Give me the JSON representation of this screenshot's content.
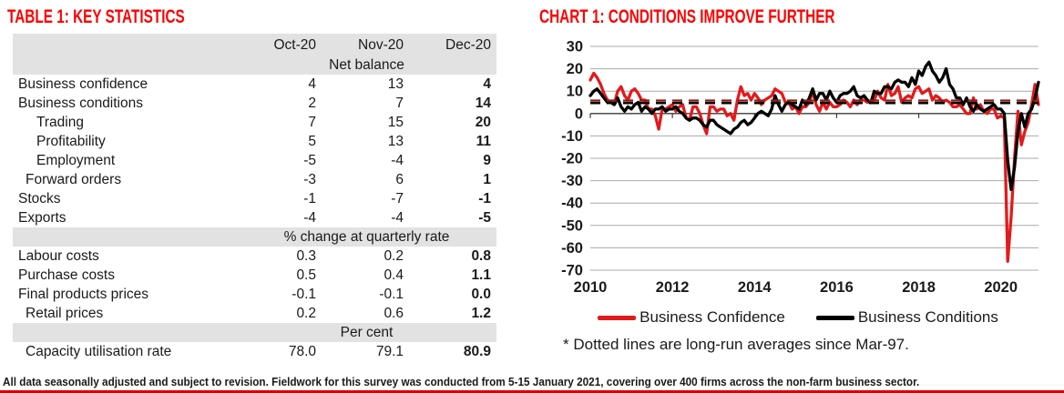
{
  "colors": {
    "accent": "#fe0000",
    "band_gray": "#e2e2e2",
    "grid": "#a8a8a8",
    "zero_axis": "#3a3a3a",
    "confidence_red": "#e31a1c",
    "conditions_black": "#000000",
    "dashed_confidence_avg": "#8a1d15",
    "dashed_conditions_avg": "#000000",
    "bottom_rule_red": "#d60000"
  },
  "table": {
    "title": "Table 1: Key Statistics",
    "columns": [
      "Oct-20",
      "Nov-20",
      "Dec-20"
    ],
    "sections": [
      {
        "unit": "Net balance",
        "rows": [
          {
            "label": "Business confidence",
            "indent": 0,
            "values": [
              "4",
              "13",
              "4"
            ]
          },
          {
            "label": "Business conditions",
            "indent": 0,
            "values": [
              "2",
              "7",
              "14"
            ]
          },
          {
            "label": "Trading",
            "indent": 2,
            "values": [
              "7",
              "15",
              "20"
            ]
          },
          {
            "label": "Profitability",
            "indent": 2,
            "values": [
              "5",
              "13",
              "11"
            ]
          },
          {
            "label": "Employment",
            "indent": 2,
            "values": [
              "-5",
              "-4",
              "9"
            ]
          },
          {
            "label": "Forward orders",
            "indent": 1,
            "values": [
              "-3",
              "6",
              "1"
            ]
          },
          {
            "label": "Stocks",
            "indent": 0,
            "values": [
              "-1",
              "-7",
              "-1"
            ]
          },
          {
            "label": "Exports",
            "indent": 0,
            "values": [
              "-4",
              "-4",
              "-5"
            ]
          }
        ]
      },
      {
        "unit": "% change at quarterly rate",
        "rows": [
          {
            "label": "Labour costs",
            "indent": 0,
            "values": [
              "0.3",
              "0.2",
              "0.8"
            ]
          },
          {
            "label": "Purchase costs",
            "indent": 0,
            "values": [
              "0.5",
              "0.4",
              "1.1"
            ]
          },
          {
            "label": "Final products prices",
            "indent": 0,
            "values": [
              "-0.1",
              "-0.1",
              "0.0"
            ]
          },
          {
            "label": "Retail prices",
            "indent": 1,
            "values": [
              "0.2",
              "0.6",
              "1.2"
            ]
          }
        ]
      },
      {
        "unit": "Per cent",
        "rows": [
          {
            "label": "Capacity utilisation rate",
            "indent": 1,
            "values": [
              "78.0",
              "79.1",
              "80.9"
            ]
          }
        ]
      }
    ]
  },
  "chart_data": {
    "type": "line",
    "title": "Chart 1: Conditions improve further",
    "x_unit": "monthly",
    "x_range": [
      "Jan-2010",
      "Dec-2020"
    ],
    "x_start_year": 2010,
    "x_tick_years": [
      2010,
      2012,
      2014,
      2016,
      2018,
      2020
    ],
    "ylim": [
      -70,
      30
    ],
    "y_ticks": [
      30,
      20,
      10,
      0,
      -10,
      -20,
      -30,
      -40,
      -50,
      -60,
      -70
    ],
    "grid": true,
    "legend_position": "bottom",
    "footnote": "* Dotted lines are long-run averages since Mar-97.",
    "series": [
      {
        "name": "Business Confidence",
        "color": "#e31a1c",
        "longrun_avg": 6,
        "monthly_values": [
          15,
          18,
          16,
          13,
          9,
          6,
          5,
          4,
          10,
          12,
          8,
          6,
          10,
          11,
          9,
          6,
          6,
          2,
          2,
          -1,
          -7,
          2,
          2,
          3,
          4,
          1,
          3,
          4,
          -2,
          -3,
          3,
          3,
          0,
          -5,
          -9,
          3,
          3,
          1,
          2,
          2,
          -1,
          0,
          -3,
          6,
          12,
          8,
          9,
          6,
          9,
          7,
          4,
          6,
          7,
          8,
          11,
          10,
          9,
          5,
          5,
          2,
          3,
          0,
          3,
          3,
          5,
          10,
          4,
          1,
          5,
          2,
          5,
          3,
          3,
          4,
          6,
          5,
          3,
          6,
          4,
          6,
          6,
          5,
          5,
          6,
          10,
          7,
          6,
          13,
          8,
          9,
          12,
          5,
          7,
          8,
          7,
          11,
          12,
          9,
          10,
          11,
          6,
          8,
          7,
          5,
          6,
          5,
          3,
          3,
          4,
          2,
          0,
          0,
          7,
          2,
          4,
          1,
          0,
          2,
          2,
          -2,
          -1,
          -2,
          -66,
          -46,
          -20,
          1,
          -14,
          -8,
          -4,
          4,
          13,
          4
        ]
      },
      {
        "name": "Business Conditions",
        "color": "#000000",
        "longrun_avg": 5,
        "monthly_values": [
          8,
          10,
          11,
          9,
          7,
          5,
          5,
          4,
          7,
          3,
          1,
          3,
          2,
          4,
          5,
          1,
          3,
          2,
          0,
          2,
          2,
          3,
          1,
          2,
          2,
          3,
          1,
          0,
          -2,
          -3,
          -2,
          -2,
          -3,
          -5,
          -6,
          -3,
          -3,
          -5,
          -6,
          -7,
          -8,
          -9,
          -7,
          -6,
          -4,
          -3,
          -5,
          -4,
          -2,
          0,
          1,
          0,
          -1,
          2,
          8,
          4,
          1,
          4,
          5,
          4,
          3,
          2,
          6,
          4,
          7,
          11,
          6,
          9,
          9,
          6,
          10,
          7,
          5,
          8,
          9,
          9,
          10,
          12,
          8,
          7,
          8,
          6,
          5,
          10,
          9,
          9,
          12,
          12,
          11,
          14,
          15,
          14,
          14,
          12,
          16,
          13,
          19,
          17,
          21,
          23,
          19,
          17,
          14,
          16,
          20,
          13,
          11,
          7,
          7,
          4,
          7,
          3,
          1,
          4,
          2,
          1,
          2,
          3,
          4,
          2,
          2,
          0,
          -21,
          -34,
          -24,
          -8,
          0,
          -6,
          0,
          2,
          7,
          14
        ]
      }
    ]
  },
  "footer": {
    "note": "All data seasonally adjusted and subject to revision. Fieldwork for this survey was conducted from 5-15 January 2021, covering over 400 firms across the non-farm business sector."
  }
}
